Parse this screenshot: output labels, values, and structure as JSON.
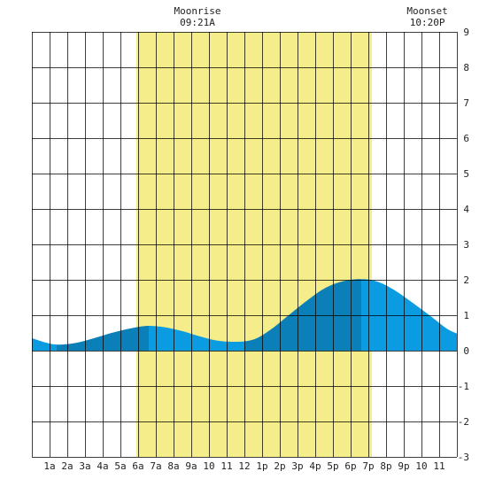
{
  "chart_data": {
    "type": "area",
    "title": "",
    "xlabel": "",
    "ylabel": "",
    "x_tick_labels": [
      "1a",
      "2a",
      "3a",
      "4a",
      "5a",
      "6a",
      "7a",
      "8a",
      "9a",
      "10",
      "11",
      "12",
      "1p",
      "2p",
      "3p",
      "4p",
      "5p",
      "6p",
      "7p",
      "8p",
      "9p",
      "10",
      "11"
    ],
    "y_ticks": [
      9,
      8,
      7,
      6,
      5,
      4,
      3,
      2,
      1,
      0,
      -1,
      -2,
      -3
    ],
    "ylim": [
      -3,
      9
    ],
    "xlim_hours": [
      0,
      24
    ],
    "daylight_hours": [
      5.9,
      19.2
    ],
    "moon_events": [
      {
        "label": "Moonrise",
        "time": "09:21A",
        "hour": 9.35
      },
      {
        "label": "Moonset",
        "time": "10:20P",
        "hour": 22.33
      }
    ],
    "series": [
      {
        "values_hour": [
          0,
          1.0,
          1.5,
          2.5,
          3.5,
          4.5,
          5.5,
          6.6,
          7.5,
          8.5,
          9.5,
          10.5,
          11.5,
          12.6,
          13.5,
          14.5,
          15.5,
          16.5,
          17.5,
          18.6,
          19.5,
          20.5,
          21.5,
          22.5,
          23.5,
          24
        ],
        "values_ft": [
          0.35,
          0.2,
          0.17,
          0.22,
          0.35,
          0.5,
          0.62,
          0.7,
          0.66,
          0.55,
          0.4,
          0.28,
          0.25,
          0.33,
          0.6,
          1.0,
          1.4,
          1.75,
          1.95,
          2.02,
          1.95,
          1.7,
          1.35,
          0.98,
          0.6,
          0.48
        ]
      }
    ],
    "colors": {
      "daylight": "#f5ec8a",
      "tide_light": "#0a9be0",
      "tide_dark": "#0a7fb8",
      "grid": "#000000"
    },
    "grid": true
  }
}
